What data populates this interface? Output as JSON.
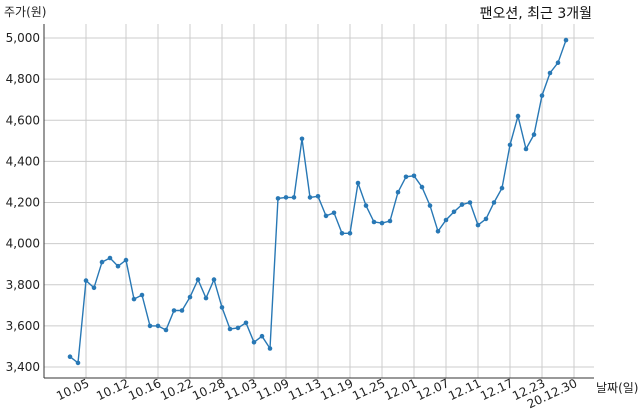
{
  "chart_data": {
    "type": "line",
    "title": "팬오션, 최근 3개월",
    "xlabel": "날짜(일)",
    "ylabel": "주가(원)",
    "ylim": [
      3350,
      5100
    ],
    "yticks": [
      3400,
      3600,
      3800,
      4000,
      4200,
      4400,
      4600,
      4800,
      5000
    ],
    "ytick_labels": [
      "3,400",
      "3,600",
      "3,800",
      "4,000",
      "4,200",
      "4,400",
      "4,600",
      "4,800",
      "5,000"
    ],
    "xtick_labels": [
      "10.05",
      "10.12",
      "10.16",
      "10.22",
      "10.28",
      "11.03",
      "11.09",
      "11.13",
      "11.19",
      "11.25",
      "12.01",
      "12.07",
      "12.11",
      "12.17",
      "12.23",
      "20.12.30"
    ],
    "xtick_indices": [
      2,
      7,
      11,
      15,
      19,
      23,
      27,
      31,
      35,
      39,
      43,
      47,
      51,
      55,
      59,
      63
    ],
    "grid": true,
    "line_color": "#2878b5",
    "series": [
      {
        "values": [
          3450,
          3420,
          3820,
          3785,
          3910,
          3930,
          3890,
          3920,
          3730,
          3750,
          3600,
          3600,
          3580,
          3675,
          3675,
          3740,
          3825,
          3735,
          3825,
          3690,
          3585,
          3590,
          3615,
          3520,
          3550,
          3490,
          4220,
          4225,
          4225,
          4510,
          4225,
          4230,
          4135,
          4150,
          4050,
          4050,
          4295,
          4185,
          4105,
          4100,
          4110,
          4250,
          4325,
          4330,
          4275,
          4185,
          4060,
          4115,
          4155,
          4190,
          4200,
          4090,
          4120,
          4200,
          4270,
          4480,
          4620,
          4460,
          4530,
          4720,
          4830,
          4880,
          4990
        ]
      }
    ]
  }
}
